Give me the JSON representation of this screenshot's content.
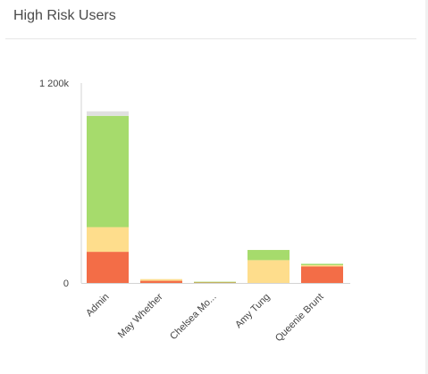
{
  "panel": {
    "title": "High Risk Users"
  },
  "chart_data": {
    "type": "bar",
    "stacked": true,
    "title": "",
    "xlabel": "",
    "ylabel": "",
    "ylim": [
      0,
      1200000
    ],
    "y_ticks": [
      "0",
      "1 200k"
    ],
    "grid": false,
    "legend": "none",
    "categories": [
      "Admin",
      "May Whether",
      "Chelsea Mo...",
      "Amy Tung",
      "Queenie Brunt"
    ],
    "series": [
      {
        "color": "#f36d47",
        "values": [
          187000,
          13000,
          2000,
          0,
          99000
        ]
      },
      {
        "color": "#fedd8c",
        "values": [
          148000,
          10000,
          0,
          137000,
          8000
        ]
      },
      {
        "color": "#a6db6c",
        "values": [
          668000,
          0,
          5000,
          61000,
          8000
        ]
      },
      {
        "color": "#e0e0e0",
        "values": [
          27000,
          0,
          0,
          0,
          0
        ]
      }
    ]
  }
}
